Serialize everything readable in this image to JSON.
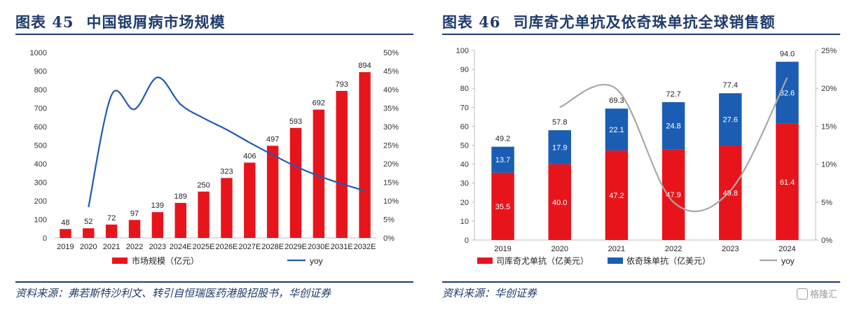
{
  "left": {
    "figure_label": "图表 45",
    "title": "中国银屑病市场规模",
    "source": "资料来源：弗若斯特沙利文、转引自恒瑞医药港股招股书，华创证券",
    "colors": {
      "bar": "#e8141c",
      "line": "#1f5bb0"
    }
  },
  "right": {
    "figure_label": "图表 46",
    "title": "司库奇尤单抗及依奇珠单抗全球销售额",
    "source": "资料来源：华创证券",
    "colors": {
      "bar_bottom": "#e8141c",
      "bar_top": "#1a5db3",
      "line": "#a8a8a8"
    }
  },
  "watermark": "格隆汇",
  "chart_data": [
    {
      "type": "bar",
      "categories": [
        "2019",
        "2020",
        "2021",
        "2022",
        "2023",
        "2024E",
        "2025E",
        "2026E",
        "2027E",
        "2028E",
        "2029E",
        "2030E",
        "2031E",
        "2032E"
      ],
      "series": [
        {
          "name": "市场规模（亿元）",
          "type": "bar",
          "axis": "left",
          "values": [
            48,
            52,
            72,
            97,
            139,
            189,
            250,
            323,
            406,
            497,
            593,
            692,
            793,
            894
          ]
        },
        {
          "name": "yoy",
          "type": "line",
          "axis": "right",
          "values": [
            null,
            8.3,
            38.5,
            34.7,
            43.3,
            36.0,
            32.3,
            29.2,
            25.7,
            22.4,
            19.3,
            16.7,
            14.6,
            12.7
          ]
        }
      ],
      "ylim_left": [
        0,
        1000
      ],
      "yticks_left": [
        "0",
        "100",
        "200",
        "300",
        "400",
        "500",
        "600",
        "700",
        "800",
        "900",
        "1000"
      ],
      "ylim_right": [
        0,
        50
      ],
      "yticks_right": [
        "0%",
        "5%",
        "10%",
        "15%",
        "20%",
        "25%",
        "30%",
        "35%",
        "40%",
        "45%",
        "50%"
      ],
      "legend_position": "bottom"
    },
    {
      "type": "bar",
      "stacked": true,
      "categories": [
        "2019",
        "2020",
        "2021",
        "2022",
        "2023",
        "2024"
      ],
      "series": [
        {
          "name": "司库奇尤单抗（亿美元）",
          "type": "bar",
          "axis": "left",
          "values": [
            35.5,
            40.0,
            47.2,
            47.9,
            49.8,
            61.4
          ],
          "labels": [
            "35.5",
            "40.0",
            "47.2",
            "47.9",
            "49.8",
            "61.4"
          ]
        },
        {
          "name": "依奇珠单抗（亿美元）",
          "type": "bar",
          "axis": "left",
          "values": [
            13.7,
            17.9,
            22.1,
            24.8,
            27.6,
            32.6
          ],
          "labels": [
            "13.7",
            "17.9",
            "22.1",
            "24.8",
            "27.6",
            "32.6"
          ]
        },
        {
          "name": "yoy",
          "type": "line",
          "axis": "right",
          "values": [
            null,
            17.5,
            19.9,
            5.0,
            6.5,
            21.4
          ]
        }
      ],
      "totals": [
        "49.2",
        "57.8",
        "69.3",
        "72.7",
        "77.4",
        "94.0"
      ],
      "ylim_left": [
        0,
        100
      ],
      "yticks_left": [
        "0",
        "10",
        "20",
        "30",
        "40",
        "50",
        "60",
        "70",
        "80",
        "90",
        "100"
      ],
      "ylim_right": [
        0,
        25
      ],
      "yticks_right": [
        "0%",
        "5%",
        "10%",
        "15%",
        "20%",
        "25%"
      ],
      "legend_position": "bottom"
    }
  ]
}
